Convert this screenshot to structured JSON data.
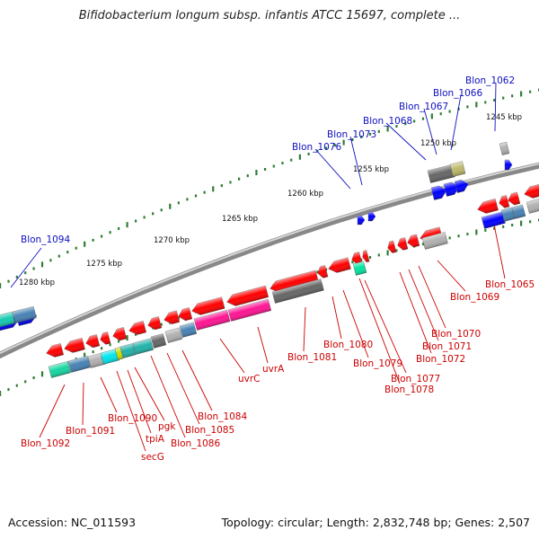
{
  "title": "Bifidobacterium longum subsp. infantis ATCC 15697, complete ...",
  "footer": {
    "accession": "Accession: NC_011593",
    "summary": "Topology: circular; Length: 2,832,748 bp; Genes: 2,507"
  },
  "colors": {
    "forward_label": "#1010c0",
    "reverse_label": "#cc0000",
    "backbone": "#909090",
    "tick": "#2e7d32"
  },
  "scale_labels": [
    "1245 kbp",
    "1250 kbp",
    "1255 kbp",
    "1260 kbp",
    "1265 kbp",
    "1270 kbp",
    "1275 kbp",
    "1280 kbp"
  ],
  "forward_labels": [
    "Blon_1062",
    "Blon_1066",
    "Blon_1067",
    "Blon_1068",
    "Blon_1073",
    "Blon_1076",
    "Blon_1094"
  ],
  "reverse_labels": [
    "Blon_1065",
    "Blon_1069",
    "Blon_1070",
    "Blon_1071",
    "Blon_1072",
    "Blon_1077",
    "Blon_1078",
    "Blon_1079",
    "Blon_1080",
    "Blon_1081",
    "uvrA",
    "uvrC",
    "Blon_1084",
    "Blon_1085",
    "Blon_1086",
    "pgk",
    "tpiA",
    "secG",
    "Blon_1090",
    "Blon_1091",
    "Blon_1092"
  ]
}
